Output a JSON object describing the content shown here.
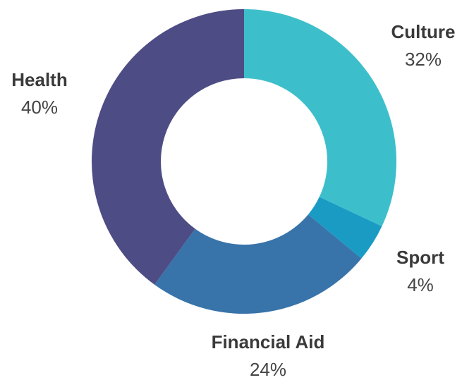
{
  "chart_data": {
    "type": "donut",
    "categories": [
      "Culture",
      "Sport",
      "Financial Aid",
      "Health"
    ],
    "values": [
      32,
      4,
      24,
      40
    ],
    "value_labels": [
      "32%",
      "4%",
      "24%",
      "40%"
    ],
    "colors": [
      "#3dbfcb",
      "#1a9bc4",
      "#3873aa",
      "#4e4c84"
    ]
  }
}
